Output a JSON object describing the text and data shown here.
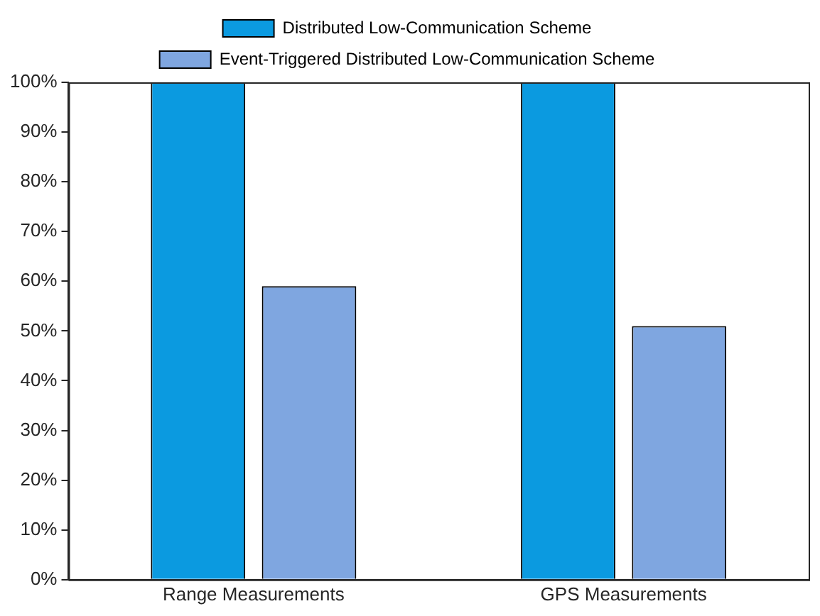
{
  "chart_data": {
    "type": "bar",
    "categories": [
      "Range Measurements",
      "GPS Measurements"
    ],
    "series": [
      {
        "name": "Distributed Low-Communication Scheme",
        "color": "#0b9ae0",
        "values": [
          100,
          100
        ]
      },
      {
        "name": "Event-Triggered Distributed Low-Communication Scheme",
        "color": "#7fa6e0",
        "values": [
          59,
          51
        ]
      }
    ],
    "ylim": [
      0,
      100
    ],
    "yticks": [
      {
        "value": 0,
        "label": "0%"
      },
      {
        "value": 10,
        "label": "10%"
      },
      {
        "value": 20,
        "label": "20%"
      },
      {
        "value": 30,
        "label": "30%"
      },
      {
        "value": 40,
        "label": "40%"
      },
      {
        "value": 50,
        "label": "50%"
      },
      {
        "value": 60,
        "label": "60%"
      },
      {
        "value": 70,
        "label": "70%"
      },
      {
        "value": 80,
        "label": "80%"
      },
      {
        "value": 90,
        "label": "90%"
      },
      {
        "value": 100,
        "label": "100%"
      }
    ],
    "grid": false,
    "legend": "top"
  }
}
